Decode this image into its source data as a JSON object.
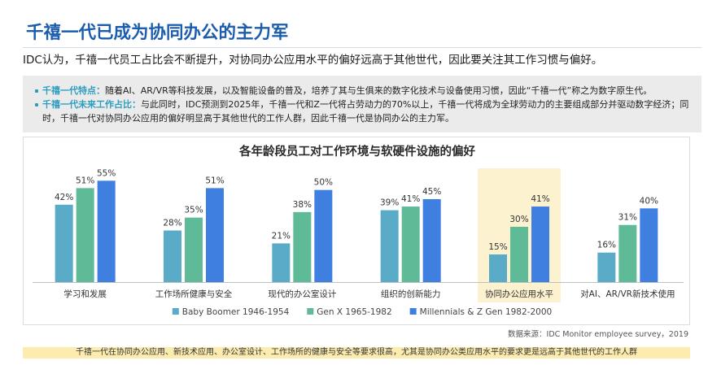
{
  "title": "千禧一代已成为协同办公的主力军",
  "subtitle": "IDC认为，千禧一代员工占比会不断提升，对协同办公应用水平的偏好远高于其他世代，因此要关注其工作习惯与偏好。",
  "icons": {
    "bullet": "bullet-icon"
  },
  "highlights": [
    {
      "label": "千禧一代特点：",
      "text": "随着AI、AR/VR等科技发展，以及智能设备的普及，培养了其与生俱来的数字化技术与设备使用习惯，因此“千禧一代”称之为数字原生代。"
    },
    {
      "label": "千禧一代未来工作占比：",
      "text": "与此同时，IDC预测到2025年，千禧一代和Z一代将占劳动力的70%以上，千禧一代将成为全球劳动力的主要组成部分并驱动数字经济；同时，千禧一代对协同办公应用的偏好明显高于其他世代的工作人群，因此千禧一代是协同办公的主力军。"
    }
  ],
  "source": "数据来源：IDC Monitor employee survey，2019",
  "conclusion": "千禧一代在协同办公应用、新技术应用、办公室设计、工作场所的健康与安全等要求很高，尤其是协同办公类应用水平的要求更是远高于其他世代的工作人群",
  "colors": {
    "title": "#1b5cad",
    "accent": "#2b9dbe",
    "panel_background": "#ebebeb",
    "conclusion_band": "#fcecb0"
  },
  "chart_data": {
    "type": "bar",
    "title": "各年龄段员工对工作环境与软硬件设施的偏好",
    "categories": [
      "学习和发展",
      "工作场所健康与安全",
      "现代的办公室设计",
      "组织的创新能力",
      "协同办公应用水平",
      "对AI、AR/VR新技术使用"
    ],
    "series": [
      {
        "name": "Baby Boomer 1946-1954",
        "values": [
          42,
          28,
          21,
          39,
          15,
          16
        ],
        "labels": [
          "42%",
          "28%",
          "21%",
          "39%",
          "15%",
          "16%"
        ],
        "color": "#5aabc8"
      },
      {
        "name": "Gen X 1965-1982",
        "values": [
          51,
          35,
          38,
          41,
          30,
          31
        ],
        "labels": [
          "51%",
          "35%",
          "38%",
          "41%",
          "30%",
          "31%"
        ],
        "color": "#5fba97"
      },
      {
        "name": "Millennials & Z Gen 1982-2000",
        "values": [
          55,
          51,
          50,
          45,
          41,
          40
        ],
        "labels": [
          "55%",
          "51%",
          "50%",
          "45%",
          "41%",
          "40%"
        ],
        "color": "#3e7fe0"
      }
    ],
    "ylim": [
      0,
      60
    ],
    "grid": false,
    "legend_position": "bottom",
    "highlight": {
      "category_index": 4,
      "color": "#fdf2cf"
    }
  }
}
